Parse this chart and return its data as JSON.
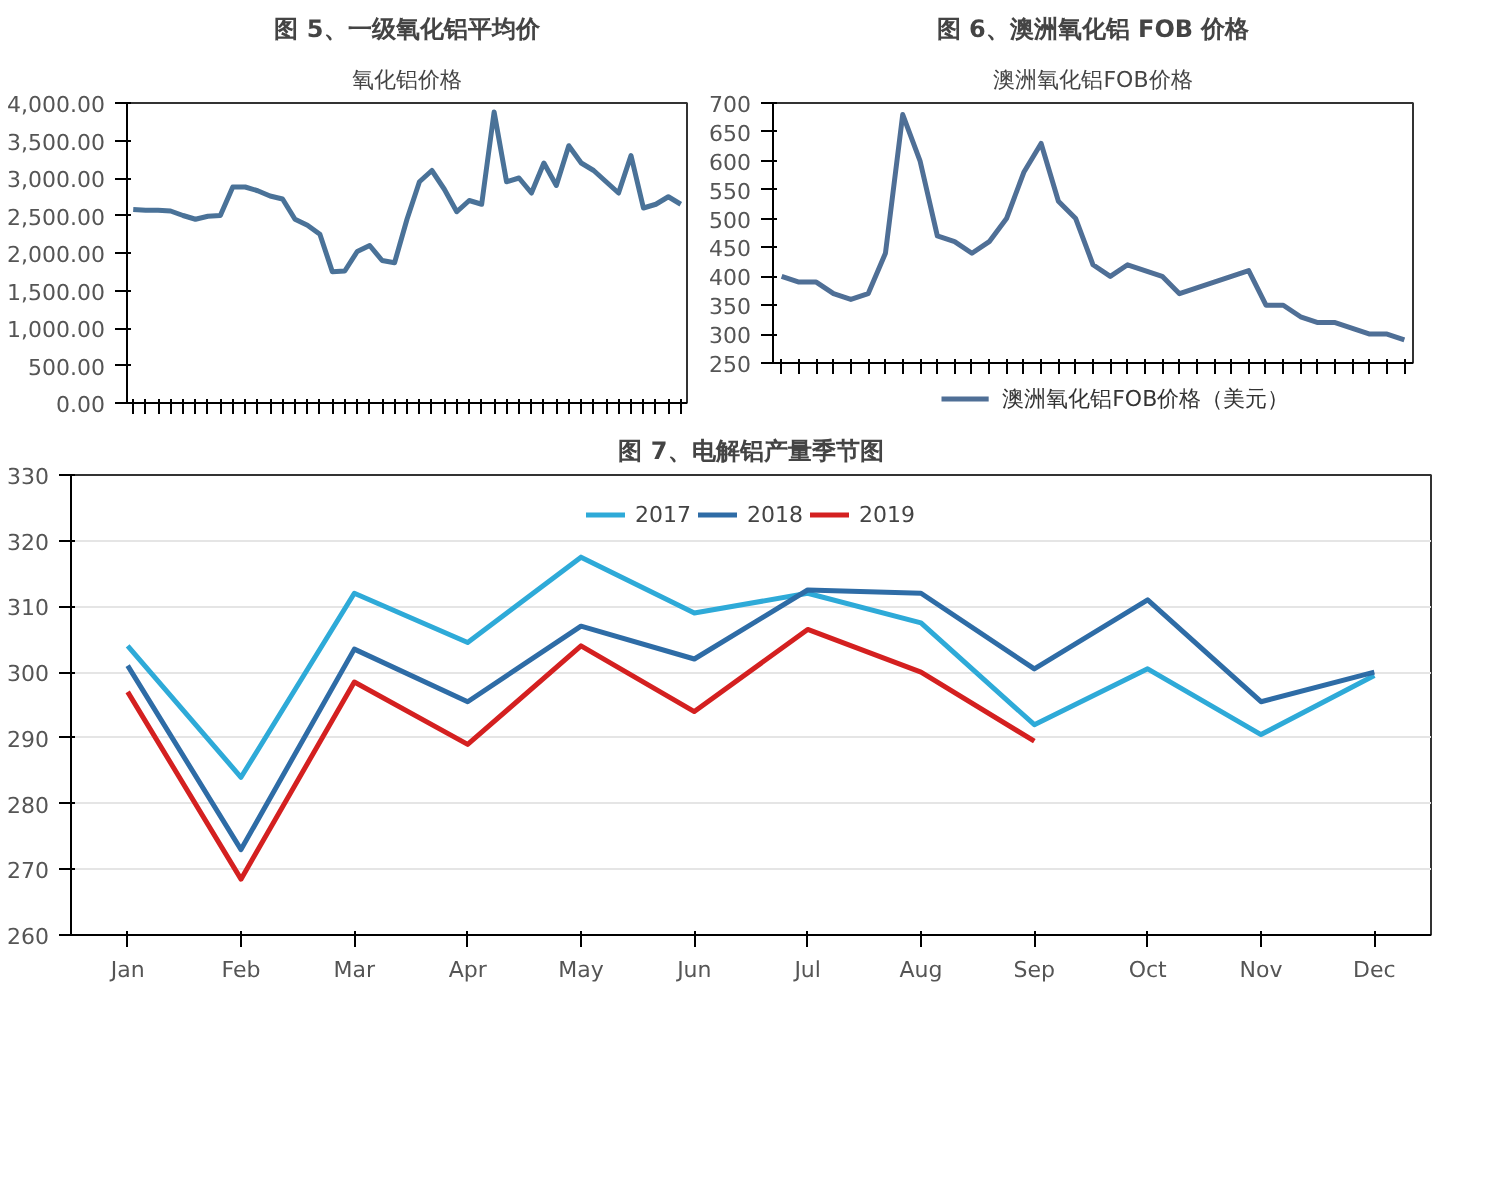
{
  "chart_data": [
    {
      "type": "line",
      "title": "图 5、一级氧化铝平均价",
      "subtitle": "氧化铝价格",
      "categories": [
        null,
        null,
        null,
        null,
        null,
        null,
        null,
        null,
        null,
        null,
        null,
        null,
        null,
        null,
        null,
        null,
        null,
        null,
        null,
        null,
        null,
        null,
        null,
        null,
        null,
        null,
        null,
        null,
        null,
        null,
        null,
        null,
        null,
        null,
        null,
        null,
        null,
        null,
        null,
        null,
        null,
        null,
        null,
        null,
        null
      ],
      "series": [
        {
          "color": "#4a7298",
          "values": [
            2580,
            2570,
            2570,
            2560,
            2500,
            2450,
            2490,
            2500,
            2880,
            2880,
            2830,
            2760,
            2720,
            2450,
            2370,
            2250,
            1750,
            1760,
            2020,
            2100,
            1900,
            1870,
            2450,
            2950,
            3100,
            2850,
            2550,
            2700,
            2650,
            3880,
            2950,
            3000,
            2800,
            3200,
            2900,
            3430,
            3200,
            3100,
            2950,
            2800,
            3300,
            2600,
            2650,
            2750,
            2650
          ]
        }
      ],
      "ylim": [
        0,
        4000
      ],
      "yticks": [
        {
          "value": 0,
          "label": "0.00"
        },
        {
          "value": 500,
          "label": "500.00"
        },
        {
          "value": 1000,
          "label": "1,000.00"
        },
        {
          "value": 1500,
          "label": "1,500.00"
        },
        {
          "value": 2000,
          "label": "2,000.00"
        },
        {
          "value": 2500,
          "label": "2,500.00"
        },
        {
          "value": 3000,
          "label": "3,000.00"
        },
        {
          "value": 3500,
          "label": "3,500.00"
        },
        {
          "value": 4000,
          "label": "4,000.00"
        }
      ],
      "tick_labels": "y",
      "grid": false,
      "legend": false
    },
    {
      "type": "line",
      "title": "图 6、澳洲氧化铝 FOB 价格",
      "subtitle": "澳洲氧化铝FOB价格",
      "categories": [
        null,
        null,
        null,
        null,
        null,
        null,
        null,
        null,
        null,
        null,
        null,
        null,
        null,
        null,
        null,
        null,
        null,
        null,
        null,
        null,
        null,
        null,
        null,
        null,
        null,
        null,
        null,
        null,
        null,
        null,
        null,
        null,
        null,
        null,
        null,
        null,
        null
      ],
      "series": [
        {
          "name": "澳洲氧化铝FOB价格（美元）",
          "color": "#4f6f96",
          "values": [
            400,
            390,
            390,
            370,
            360,
            370,
            440,
            680,
            600,
            470,
            460,
            440,
            460,
            500,
            580,
            630,
            530,
            500,
            420,
            400,
            420,
            410,
            400,
            370,
            380,
            390,
            400,
            410,
            350,
            350,
            330,
            320,
            320,
            310,
            300,
            300,
            290
          ]
        }
      ],
      "ylim": [
        250,
        700
      ],
      "yticks": [
        250,
        300,
        350,
        400,
        450,
        500,
        550,
        600,
        650,
        700
      ],
      "tick_labels": "y",
      "grid": false,
      "legend": "bottom"
    },
    {
      "type": "line",
      "title": "图 7、电解铝产量季节图",
      "categories": [
        "Jan",
        "Feb",
        "Mar",
        "Apr",
        "May",
        "Jun",
        "Jul",
        "Aug",
        "Sep",
        "Oct",
        "Nov",
        "Dec"
      ],
      "series": [
        {
          "name": "2017",
          "color": "#2eaad8",
          "values": [
            304,
            284,
            312,
            304.5,
            317.5,
            309,
            312,
            307.5,
            292,
            300.5,
            290.5,
            299.5
          ]
        },
        {
          "name": "2018",
          "color": "#2e6ca6",
          "values": [
            301,
            273,
            303.5,
            295.5,
            307,
            302,
            312.5,
            312,
            300.5,
            311,
            295.5,
            300
          ]
        },
        {
          "name": "2019",
          "color": "#d42020",
          "values": [
            297,
            268.5,
            298.5,
            289,
            304,
            294,
            306.5,
            300,
            289.5,
            null,
            null,
            null
          ]
        }
      ],
      "ylim": [
        260,
        330
      ],
      "yticks": [
        260,
        270,
        280,
        290,
        300,
        310,
        320,
        330
      ],
      "grid": "y",
      "legend": "top"
    }
  ]
}
